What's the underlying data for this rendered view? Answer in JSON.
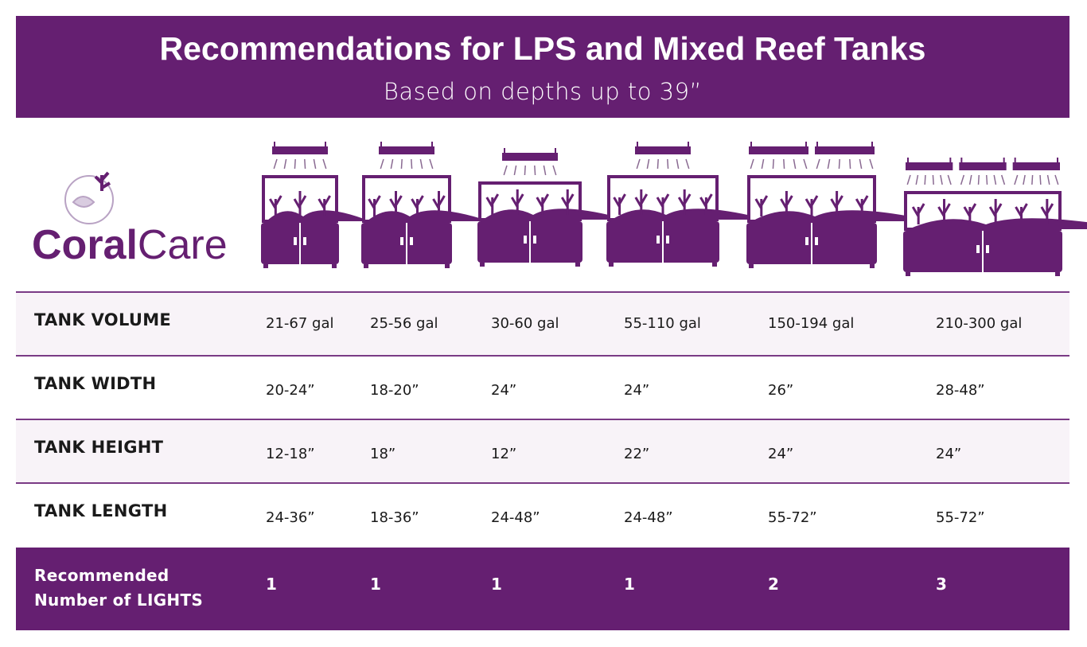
{
  "header": {
    "title": "Recommendations for LPS and Mixed Reef Tanks",
    "subtitle": "Based on depths up to 39”"
  },
  "logo": {
    "bold": "Coral",
    "light": "Care"
  },
  "table": {
    "rows": [
      {
        "label": "TANK VOLUME",
        "cells": [
          "21-67 gal",
          "25-56 gal",
          "30-60 gal",
          "55-110 gal",
          "150-194 gal",
          "210-300 gal"
        ]
      },
      {
        "label": "TANK WIDTH",
        "cells": [
          "20-24”",
          "18-20”",
          "24”",
          "24”",
          "26”",
          "28-48”"
        ]
      },
      {
        "label": "TANK HEIGHT",
        "cells": [
          "12-18”",
          "18”",
          "12”",
          "22”",
          "24”",
          "24”"
        ]
      },
      {
        "label": "TANK LENGTH",
        "cells": [
          "24-36”",
          "18-36”",
          "24-48”",
          "24-48”",
          "55-72”",
          "55-72”"
        ]
      },
      {
        "label": "Recommended Number of LIGHTS",
        "cells": [
          1,
          1,
          1,
          1,
          2,
          3
        ]
      }
    ]
  }
}
